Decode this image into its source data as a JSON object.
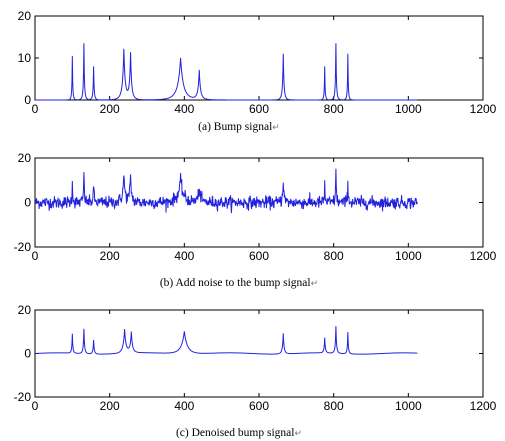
{
  "chart_data": [
    {
      "type": "line",
      "caption": "(a) Bump signal",
      "caption_mark": "↵",
      "xlim": [
        0,
        1200
      ],
      "ylim": [
        0,
        20
      ],
      "xticks": [
        0,
        200,
        400,
        600,
        800,
        1000,
        1200
      ],
      "yticks": [
        0,
        10,
        20
      ],
      "color": "#2222dd",
      "noise": 0,
      "smooth": 1,
      "bumps": [
        {
          "x": 100,
          "height": 10.5,
          "width": 4
        },
        {
          "x": 131,
          "height": 13.5,
          "width": 5
        },
        {
          "x": 157,
          "height": 8,
          "width": 5
        },
        {
          "x": 238,
          "height": 12,
          "width": 13
        },
        {
          "x": 256,
          "height": 11,
          "width": 10
        },
        {
          "x": 390,
          "height": 10,
          "width": 28
        },
        {
          "x": 440,
          "height": 7,
          "width": 12
        },
        {
          "x": 665,
          "height": 11,
          "width": 7
        },
        {
          "x": 776,
          "height": 8,
          "width": 4
        },
        {
          "x": 806,
          "height": 13.5,
          "width": 5
        },
        {
          "x": 838,
          "height": 11,
          "width": 4
        }
      ],
      "x_end": 1024
    },
    {
      "type": "line",
      "caption": "(b) Add noise to the bump signal",
      "caption_mark": "↵",
      "xlim": [
        0,
        1200
      ],
      "ylim": [
        -20,
        20
      ],
      "xticks": [
        0,
        200,
        400,
        600,
        800,
        1000,
        1200
      ],
      "yticks": [
        -20,
        0,
        20
      ],
      "color": "#2222dd",
      "noise": 1.4,
      "smooth": 1,
      "bumps": [
        {
          "x": 100,
          "height": 10.5,
          "width": 4
        },
        {
          "x": 131,
          "height": 13.5,
          "width": 5
        },
        {
          "x": 157,
          "height": 8,
          "width": 5
        },
        {
          "x": 238,
          "height": 12,
          "width": 13
        },
        {
          "x": 256,
          "height": 11,
          "width": 10
        },
        {
          "x": 390,
          "height": 10,
          "width": 28
        },
        {
          "x": 440,
          "height": 7,
          "width": 12
        },
        {
          "x": 665,
          "height": 11,
          "width": 7
        },
        {
          "x": 776,
          "height": 8,
          "width": 4
        },
        {
          "x": 806,
          "height": 13.5,
          "width": 5
        },
        {
          "x": 838,
          "height": 11,
          "width": 4
        }
      ],
      "x_end": 1024
    },
    {
      "type": "line",
      "caption": "(c) Denoised bump signal",
      "caption_mark": "↵",
      "xlim": [
        0,
        1200
      ],
      "ylim": [
        -20,
        20
      ],
      "xticks": [
        0,
        200,
        400,
        600,
        800,
        1000,
        1200
      ],
      "yticks": [
        -20,
        0,
        20
      ],
      "color": "#2222dd",
      "noise": 0,
      "smooth": 0.6,
      "bumps": [
        {
          "x": 100,
          "height": 9,
          "width": 5
        },
        {
          "x": 131,
          "height": 11.5,
          "width": 6
        },
        {
          "x": 157,
          "height": 6.5,
          "width": 6
        },
        {
          "x": 240,
          "height": 11,
          "width": 14
        },
        {
          "x": 258,
          "height": 9.5,
          "width": 11
        },
        {
          "x": 400,
          "height": 10.5,
          "width": 30
        },
        {
          "x": 665,
          "height": 9.5,
          "width": 8
        },
        {
          "x": 776,
          "height": 7,
          "width": 6
        },
        {
          "x": 806,
          "height": 12.5,
          "width": 6
        },
        {
          "x": 838,
          "height": 10,
          "width": 5
        }
      ],
      "x_end": 1024
    }
  ]
}
